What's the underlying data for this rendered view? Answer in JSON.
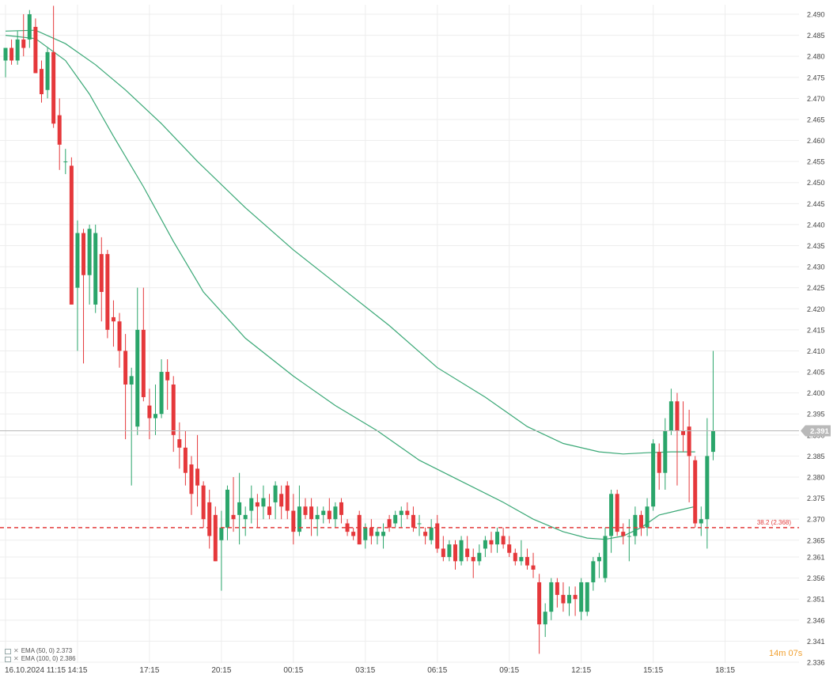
{
  "chart_data": {
    "type": "candlestick",
    "instrument_price_now": "2.391",
    "ylim": [
      2.336,
      2.492
    ],
    "y_ticks": [
      2.49,
      2.485,
      2.48,
      2.475,
      2.47,
      2.465,
      2.46,
      2.455,
      2.45,
      2.445,
      2.44,
      2.435,
      2.43,
      2.425,
      2.42,
      2.415,
      2.41,
      2.405,
      2.4,
      2.395,
      2.39,
      2.385,
      2.38,
      2.375,
      2.37,
      2.365,
      2.361,
      2.356,
      2.351,
      2.346,
      2.341,
      2.336
    ],
    "x_labels": [
      "16.10.2024  11:15",
      "14:15",
      "17:15",
      "20:15",
      "00:15",
      "03:15",
      "06:15",
      "09:15",
      "12:15",
      "15:15",
      "18:15"
    ],
    "x_label_index": [
      0,
      12,
      24,
      36,
      48,
      60,
      72,
      84,
      96,
      108,
      120
    ],
    "candles": [
      [
        2.479,
        2.482,
        2.475,
        2.482
      ],
      [
        2.482,
        2.484,
        2.478,
        2.479
      ],
      [
        2.479,
        2.486,
        2.478,
        2.484
      ],
      [
        2.484,
        2.49,
        2.48,
        2.482
      ],
      [
        2.484,
        2.491,
        2.482,
        2.49
      ],
      [
        2.487,
        2.489,
        2.476,
        2.476
      ],
      [
        2.477,
        2.479,
        2.469,
        2.471
      ],
      [
        2.472,
        2.482,
        2.47,
        2.481
      ],
      [
        2.481,
        2.492,
        2.463,
        2.464
      ],
      [
        2.466,
        2.47,
        2.453,
        2.459
      ],
      [
        2.455,
        2.458,
        2.452,
        2.455
      ],
      [
        2.454,
        2.456,
        2.421,
        2.421
      ],
      [
        2.425,
        2.441,
        2.41,
        2.438
      ],
      [
        2.438,
        2.439,
        2.407,
        2.428
      ],
      [
        2.428,
        2.44,
        2.421,
        2.439
      ],
      [
        2.421,
        2.44,
        2.419,
        2.438
      ],
      [
        2.433,
        2.437,
        2.417,
        2.424
      ],
      [
        2.433,
        2.434,
        2.413,
        2.415
      ],
      [
        2.418,
        2.422,
        2.411,
        2.417
      ],
      [
        2.417,
        2.419,
        2.406,
        2.41
      ],
      [
        2.41,
        2.414,
        2.389,
        2.402
      ],
      [
        2.402,
        2.406,
        2.378,
        2.404
      ],
      [
        2.392,
        2.425,
        2.39,
        2.415
      ],
      [
        2.415,
        2.425,
        2.398,
        2.399
      ],
      [
        2.397,
        2.401,
        2.389,
        2.394
      ],
      [
        2.394,
        2.402,
        2.39,
        2.395
      ],
      [
        2.395,
        2.408,
        2.394,
        2.405
      ],
      [
        2.405,
        2.408,
        2.396,
        2.403
      ],
      [
        2.402,
        2.404,
        2.386,
        2.39
      ],
      [
        2.389,
        2.393,
        2.382,
        2.387
      ],
      [
        2.387,
        2.391,
        2.378,
        2.381
      ],
      [
        2.383,
        2.385,
        2.371,
        2.376
      ],
      [
        2.382,
        2.39,
        2.373,
        2.378
      ],
      [
        2.378,
        2.379,
        2.368,
        2.37
      ],
      [
        2.374,
        2.377,
        2.363,
        2.366
      ],
      [
        2.371,
        2.373,
        2.36,
        2.36
      ],
      [
        2.365,
        2.372,
        2.353,
        2.368
      ],
      [
        2.368,
        2.378,
        2.365,
        2.377
      ],
      [
        2.371,
        2.38,
        2.367,
        2.37
      ],
      [
        2.371,
        2.381,
        2.364,
        2.374
      ],
      [
        2.37,
        2.373,
        2.366,
        2.371
      ],
      [
        2.372,
        2.378,
        2.369,
        2.375
      ],
      [
        2.374,
        2.376,
        2.368,
        2.373
      ],
      [
        2.373,
        2.378,
        2.37,
        2.375
      ],
      [
        2.373,
        2.376,
        2.37,
        2.371
      ],
      [
        2.374,
        2.379,
        2.37,
        2.378
      ],
      [
        2.376,
        2.378,
        2.37,
        2.373
      ],
      [
        2.378,
        2.379,
        2.37,
        2.372
      ],
      [
        2.372,
        2.376,
        2.364,
        2.367
      ],
      [
        2.367,
        2.378,
        2.366,
        2.373
      ],
      [
        2.373,
        2.375,
        2.37,
        2.371
      ],
      [
        2.373,
        2.375,
        2.366,
        2.37
      ],
      [
        2.37,
        2.373,
        2.366,
        2.371
      ],
      [
        2.371,
        2.373,
        2.369,
        2.372
      ],
      [
        2.372,
        2.375,
        2.369,
        2.37
      ],
      [
        2.37,
        2.374,
        2.368,
        2.373
      ],
      [
        2.374,
        2.375,
        2.369,
        2.371
      ],
      [
        2.369,
        2.37,
        2.366,
        2.367
      ],
      [
        2.367,
        2.368,
        2.365,
        2.366
      ],
      [
        2.371,
        2.372,
        2.364,
        2.364
      ],
      [
        2.365,
        2.369,
        2.363,
        2.368
      ],
      [
        2.368,
        2.37,
        2.364,
        2.366
      ],
      [
        2.366,
        2.368,
        2.364,
        2.367
      ],
      [
        2.366,
        2.369,
        2.363,
        2.367
      ],
      [
        2.37,
        2.371,
        2.367,
        2.368
      ],
      [
        2.369,
        2.372,
        2.368,
        2.371
      ],
      [
        2.371,
        2.373,
        2.368,
        2.372
      ],
      [
        2.372,
        2.374,
        2.37,
        2.371
      ],
      [
        2.371,
        2.373,
        2.367,
        2.368
      ],
      [
        2.369,
        2.371,
        2.366,
        2.369
      ],
      [
        2.367,
        2.368,
        2.364,
        2.366
      ],
      [
        2.365,
        2.37,
        2.364,
        2.368
      ],
      [
        2.369,
        2.371,
        2.362,
        2.363
      ],
      [
        2.363,
        2.366,
        2.36,
        2.361
      ],
      [
        2.361,
        2.365,
        2.36,
        2.364
      ],
      [
        2.364,
        2.365,
        2.358,
        2.36
      ],
      [
        2.36,
        2.366,
        2.359,
        2.365
      ],
      [
        2.363,
        2.366,
        2.36,
        2.361
      ],
      [
        2.361,
        2.363,
        2.356,
        2.36
      ],
      [
        2.36,
        2.364,
        2.359,
        2.362
      ],
      [
        2.363,
        2.366,
        2.361,
        2.365
      ],
      [
        2.365,
        2.367,
        2.362,
        2.364
      ],
      [
        2.364,
        2.368,
        2.362,
        2.367
      ],
      [
        2.366,
        2.368,
        2.363,
        2.364
      ],
      [
        2.364,
        2.366,
        2.361,
        2.362
      ],
      [
        2.362,
        2.363,
        2.359,
        2.36
      ],
      [
        2.36,
        2.365,
        2.359,
        2.361
      ],
      [
        2.361,
        2.363,
        2.358,
        2.359
      ],
      [
        2.359,
        2.362,
        2.356,
        2.358
      ],
      [
        2.355,
        2.357,
        2.338,
        2.345
      ],
      [
        2.345,
        2.35,
        2.342,
        2.348
      ],
      [
        2.348,
        2.356,
        2.346,
        2.355
      ],
      [
        2.355,
        2.356,
        2.349,
        2.352
      ],
      [
        2.352,
        2.355,
        2.348,
        2.35
      ],
      [
        2.35,
        2.354,
        2.347,
        2.352
      ],
      [
        2.352,
        2.354,
        2.347,
        2.351
      ],
      [
        2.348,
        2.356,
        2.346,
        2.355
      ],
      [
        2.348,
        2.355,
        2.347,
        2.355
      ],
      [
        2.355,
        2.361,
        2.353,
        2.36
      ],
      [
        2.36,
        2.362,
        2.356,
        2.361
      ],
      [
        2.356,
        2.368,
        2.355,
        2.366
      ],
      [
        2.366,
        2.377,
        2.362,
        2.376
      ],
      [
        2.376,
        2.377,
        2.366,
        2.367
      ],
      [
        2.367,
        2.369,
        2.364,
        2.366
      ],
      [
        2.366,
        2.37,
        2.36,
        2.366
      ],
      [
        2.366,
        2.373,
        2.364,
        2.371
      ],
      [
        2.371,
        2.372,
        2.366,
        2.368
      ],
      [
        2.368,
        2.375,
        2.366,
        2.373
      ],
      [
        2.373,
        2.389,
        2.372,
        2.388
      ],
      [
        2.386,
        2.388,
        2.377,
        2.381
      ],
      [
        2.381,
        2.394,
        2.377,
        2.391
      ],
      [
        2.391,
        2.401,
        2.39,
        2.398
      ],
      [
        2.398,
        2.4,
        2.378,
        2.391
      ],
      [
        2.391,
        2.398,
        2.386,
        2.39
      ],
      [
        2.392,
        2.396,
        2.374,
        2.385
      ],
      [
        2.384,
        2.385,
        2.368,
        2.369
      ],
      [
        2.369,
        2.373,
        2.366,
        2.37
      ],
      [
        2.37,
        2.394,
        2.363,
        2.385
      ],
      [
        2.386,
        2.41,
        2.384,
        2.391
      ]
    ],
    "ema50": [
      [
        0,
        2.485
      ],
      [
        5,
        2.4842
      ],
      [
        10,
        2.479
      ],
      [
        14,
        2.471
      ],
      [
        18,
        2.461
      ],
      [
        23,
        2.449
      ],
      [
        28,
        2.436
      ],
      [
        33,
        2.424
      ],
      [
        40,
        2.413
      ],
      [
        48,
        2.404
      ],
      [
        55,
        2.397
      ],
      [
        62,
        2.391
      ],
      [
        69,
        2.384
      ],
      [
        76,
        2.379
      ],
      [
        83,
        2.374
      ],
      [
        88,
        2.37
      ],
      [
        93,
        2.367
      ],
      [
        97,
        2.3655
      ],
      [
        100,
        2.3652
      ],
      [
        103,
        2.366
      ],
      [
        106,
        2.368
      ],
      [
        109,
        2.371
      ],
      [
        112,
        2.372
      ],
      [
        115,
        2.373
      ]
    ],
    "ema100": [
      [
        0,
        2.486
      ],
      [
        5,
        2.4862
      ],
      [
        10,
        2.483
      ],
      [
        15,
        2.478
      ],
      [
        20,
        2.472
      ],
      [
        26,
        2.464
      ],
      [
        32,
        2.455
      ],
      [
        40,
        2.444
      ],
      [
        48,
        2.434
      ],
      [
        56,
        2.425
      ],
      [
        64,
        2.416
      ],
      [
        72,
        2.406
      ],
      [
        80,
        2.399
      ],
      [
        87,
        2.392
      ],
      [
        93,
        2.388
      ],
      [
        99,
        2.386
      ],
      [
        103,
        2.3855
      ],
      [
        107,
        2.3858
      ],
      [
        111,
        2.386
      ],
      [
        115,
        2.386
      ]
    ],
    "fib_level": {
      "label": "38.2 (2.368)",
      "value": 2.368
    },
    "current_line": 2.391,
    "legend": [
      {
        "label": "EMA (50, 0) 2.373"
      },
      {
        "label": "EMA (100, 0) 2.386"
      }
    ],
    "countdown": "14m 07s",
    "colors": {
      "up": "#2aa56a",
      "down": "#e5383b",
      "ema": "#3aa876",
      "fib": "#e23b3b",
      "current": "#b8b8b8",
      "axis_text": "#444444",
      "price_tag_bg": "#b9b9b9",
      "countdown": "#f0a030"
    }
  }
}
